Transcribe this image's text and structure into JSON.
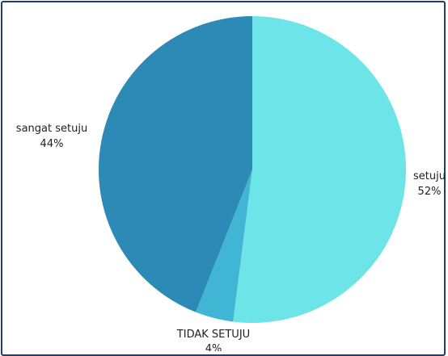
{
  "chart_data": {
    "type": "pie",
    "title": "",
    "slices": [
      {
        "label": "setuju",
        "value": 52,
        "percent_label": "52%",
        "color": "#6ce4e8"
      },
      {
        "label": "TIDAK SETUJU",
        "value": 4,
        "percent_label": "4%",
        "color": "#40b6d4"
      },
      {
        "label": "sangat setuju",
        "value": 44,
        "percent_label": "44%",
        "color": "#2d8ab6"
      }
    ],
    "legend": "none"
  }
}
